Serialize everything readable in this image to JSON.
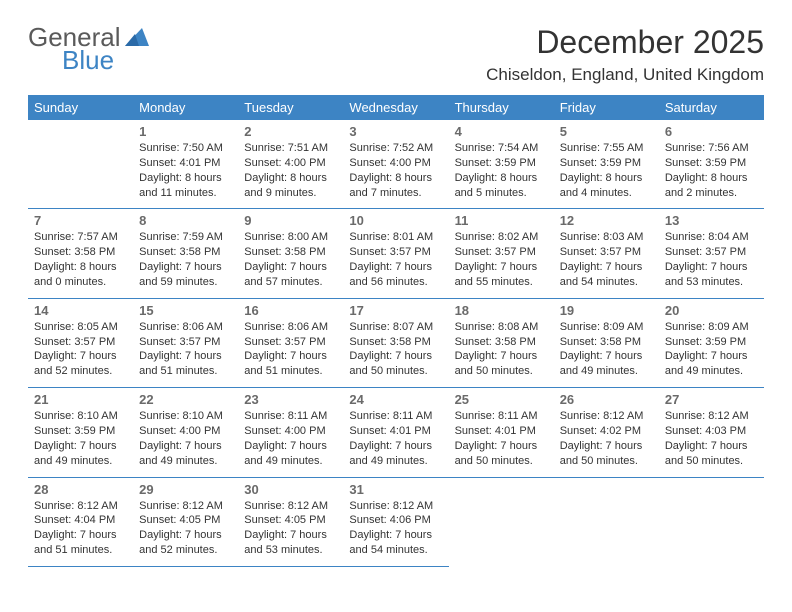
{
  "brand": {
    "word1": "General",
    "word2": "Blue"
  },
  "title": {
    "month": "December 2025",
    "location": "Chiseldon, England, United Kingdom"
  },
  "colors": {
    "header_bg": "#3d84c4",
    "header_text": "#ffffff",
    "border": "#3d84c4",
    "daynum": "#6a6a6a",
    "text": "#333333",
    "bg": "#ffffff"
  },
  "weekdays": [
    "Sunday",
    "Monday",
    "Tuesday",
    "Wednesday",
    "Thursday",
    "Friday",
    "Saturday"
  ],
  "days": {
    "1": {
      "sunrise": "Sunrise: 7:50 AM",
      "sunset": "Sunset: 4:01 PM",
      "daylight": "Daylight: 8 hours and 11 minutes."
    },
    "2": {
      "sunrise": "Sunrise: 7:51 AM",
      "sunset": "Sunset: 4:00 PM",
      "daylight": "Daylight: 8 hours and 9 minutes."
    },
    "3": {
      "sunrise": "Sunrise: 7:52 AM",
      "sunset": "Sunset: 4:00 PM",
      "daylight": "Daylight: 8 hours and 7 minutes."
    },
    "4": {
      "sunrise": "Sunrise: 7:54 AM",
      "sunset": "Sunset: 3:59 PM",
      "daylight": "Daylight: 8 hours and 5 minutes."
    },
    "5": {
      "sunrise": "Sunrise: 7:55 AM",
      "sunset": "Sunset: 3:59 PM",
      "daylight": "Daylight: 8 hours and 4 minutes."
    },
    "6": {
      "sunrise": "Sunrise: 7:56 AM",
      "sunset": "Sunset: 3:59 PM",
      "daylight": "Daylight: 8 hours and 2 minutes."
    },
    "7": {
      "sunrise": "Sunrise: 7:57 AM",
      "sunset": "Sunset: 3:58 PM",
      "daylight": "Daylight: 8 hours and 0 minutes."
    },
    "8": {
      "sunrise": "Sunrise: 7:59 AM",
      "sunset": "Sunset: 3:58 PM",
      "daylight": "Daylight: 7 hours and 59 minutes."
    },
    "9": {
      "sunrise": "Sunrise: 8:00 AM",
      "sunset": "Sunset: 3:58 PM",
      "daylight": "Daylight: 7 hours and 57 minutes."
    },
    "10": {
      "sunrise": "Sunrise: 8:01 AM",
      "sunset": "Sunset: 3:57 PM",
      "daylight": "Daylight: 7 hours and 56 minutes."
    },
    "11": {
      "sunrise": "Sunrise: 8:02 AM",
      "sunset": "Sunset: 3:57 PM",
      "daylight": "Daylight: 7 hours and 55 minutes."
    },
    "12": {
      "sunrise": "Sunrise: 8:03 AM",
      "sunset": "Sunset: 3:57 PM",
      "daylight": "Daylight: 7 hours and 54 minutes."
    },
    "13": {
      "sunrise": "Sunrise: 8:04 AM",
      "sunset": "Sunset: 3:57 PM",
      "daylight": "Daylight: 7 hours and 53 minutes."
    },
    "14": {
      "sunrise": "Sunrise: 8:05 AM",
      "sunset": "Sunset: 3:57 PM",
      "daylight": "Daylight: 7 hours and 52 minutes."
    },
    "15": {
      "sunrise": "Sunrise: 8:06 AM",
      "sunset": "Sunset: 3:57 PM",
      "daylight": "Daylight: 7 hours and 51 minutes."
    },
    "16": {
      "sunrise": "Sunrise: 8:06 AM",
      "sunset": "Sunset: 3:57 PM",
      "daylight": "Daylight: 7 hours and 51 minutes."
    },
    "17": {
      "sunrise": "Sunrise: 8:07 AM",
      "sunset": "Sunset: 3:58 PM",
      "daylight": "Daylight: 7 hours and 50 minutes."
    },
    "18": {
      "sunrise": "Sunrise: 8:08 AM",
      "sunset": "Sunset: 3:58 PM",
      "daylight": "Daylight: 7 hours and 50 minutes."
    },
    "19": {
      "sunrise": "Sunrise: 8:09 AM",
      "sunset": "Sunset: 3:58 PM",
      "daylight": "Daylight: 7 hours and 49 minutes."
    },
    "20": {
      "sunrise": "Sunrise: 8:09 AM",
      "sunset": "Sunset: 3:59 PM",
      "daylight": "Daylight: 7 hours and 49 minutes."
    },
    "21": {
      "sunrise": "Sunrise: 8:10 AM",
      "sunset": "Sunset: 3:59 PM",
      "daylight": "Daylight: 7 hours and 49 minutes."
    },
    "22": {
      "sunrise": "Sunrise: 8:10 AM",
      "sunset": "Sunset: 4:00 PM",
      "daylight": "Daylight: 7 hours and 49 minutes."
    },
    "23": {
      "sunrise": "Sunrise: 8:11 AM",
      "sunset": "Sunset: 4:00 PM",
      "daylight": "Daylight: 7 hours and 49 minutes."
    },
    "24": {
      "sunrise": "Sunrise: 8:11 AM",
      "sunset": "Sunset: 4:01 PM",
      "daylight": "Daylight: 7 hours and 49 minutes."
    },
    "25": {
      "sunrise": "Sunrise: 8:11 AM",
      "sunset": "Sunset: 4:01 PM",
      "daylight": "Daylight: 7 hours and 50 minutes."
    },
    "26": {
      "sunrise": "Sunrise: 8:12 AM",
      "sunset": "Sunset: 4:02 PM",
      "daylight": "Daylight: 7 hours and 50 minutes."
    },
    "27": {
      "sunrise": "Sunrise: 8:12 AM",
      "sunset": "Sunset: 4:03 PM",
      "daylight": "Daylight: 7 hours and 50 minutes."
    },
    "28": {
      "sunrise": "Sunrise: 8:12 AM",
      "sunset": "Sunset: 4:04 PM",
      "daylight": "Daylight: 7 hours and 51 minutes."
    },
    "29": {
      "sunrise": "Sunrise: 8:12 AM",
      "sunset": "Sunset: 4:05 PM",
      "daylight": "Daylight: 7 hours and 52 minutes."
    },
    "30": {
      "sunrise": "Sunrise: 8:12 AM",
      "sunset": "Sunset: 4:05 PM",
      "daylight": "Daylight: 7 hours and 53 minutes."
    },
    "31": {
      "sunrise": "Sunrise: 8:12 AM",
      "sunset": "Sunset: 4:06 PM",
      "daylight": "Daylight: 7 hours and 54 minutes."
    }
  },
  "grid": [
    [
      null,
      "1",
      "2",
      "3",
      "4",
      "5",
      "6"
    ],
    [
      "7",
      "8",
      "9",
      "10",
      "11",
      "12",
      "13"
    ],
    [
      "14",
      "15",
      "16",
      "17",
      "18",
      "19",
      "20"
    ],
    [
      "21",
      "22",
      "23",
      "24",
      "25",
      "26",
      "27"
    ],
    [
      "28",
      "29",
      "30",
      "31",
      null,
      null,
      null
    ]
  ]
}
